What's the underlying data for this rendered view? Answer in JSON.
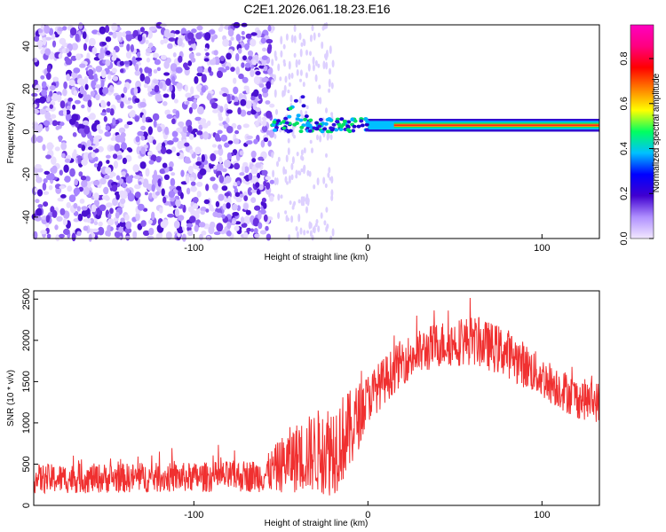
{
  "title": "C2E1.2026.061.18.23.E16",
  "chart_data": [
    {
      "type": "heatmap",
      "xlabel": "Height of straight line (km)",
      "ylabel": "Frequency (Hz)",
      "xlim": [
        -192,
        133
      ],
      "ylim": [
        -50,
        50
      ],
      "x_ticks": [
        -100,
        0,
        100
      ],
      "x_tick_labels": [
        "-100",
        "0",
        "100"
      ],
      "y_ticks": [
        -40,
        -20,
        0,
        20,
        40
      ],
      "y_tick_labels": [
        "-40",
        "-20",
        "0",
        "20",
        "40"
      ],
      "colorbar": {
        "label": "Normalized spectral amplitude",
        "range": [
          0,
          0.95
        ],
        "ticks": [
          0.0,
          0.2,
          0.4,
          0.6,
          0.8
        ],
        "tick_labels": [
          "0.0",
          "0.2",
          "0.4",
          "0.6",
          "0.8"
        ],
        "colors": [
          "#f2e8ff",
          "#b090ff",
          "#4000d0",
          "#0000ff",
          "#00c0ff",
          "#00ff60",
          "#ffff00",
          "#ff8000",
          "#ff0000",
          "#ff0080",
          "#ff00c0"
        ]
      },
      "carrier": {
        "frequency": 3,
        "start_x": -55,
        "end_x": 133
      },
      "noise_region": [
        -192,
        -55
      ]
    },
    {
      "type": "line",
      "xlabel": "Height of straight line (km)",
      "ylabel": "SNR (10 * v/v)",
      "xlim": [
        -192,
        133
      ],
      "ylim": [
        0,
        2600
      ],
      "x_ticks": [
        -100,
        0,
        100
      ],
      "x_tick_labels": [
        "-100",
        "0",
        "100"
      ],
      "y_ticks": [
        0,
        500,
        1000,
        1500,
        2000,
        2500
      ],
      "y_tick_labels": [
        "0",
        "500",
        "1000",
        "1500",
        "2000",
        "2500"
      ],
      "color": "#f03030",
      "envelope": {
        "x": [
          -192,
          -150,
          -100,
          -60,
          -45,
          -30,
          -20,
          -10,
          0,
          20,
          40,
          60,
          80,
          100,
          120,
          133
        ],
        "mean": [
          320,
          330,
          340,
          360,
          550,
          650,
          700,
          900,
          1300,
          1750,
          1950,
          2000,
          1850,
          1550,
          1300,
          1250
        ],
        "spread": [
          180,
          180,
          180,
          200,
          400,
          500,
          600,
          500,
          300,
          280,
          280,
          300,
          300,
          260,
          250,
          250
        ]
      }
    }
  ]
}
